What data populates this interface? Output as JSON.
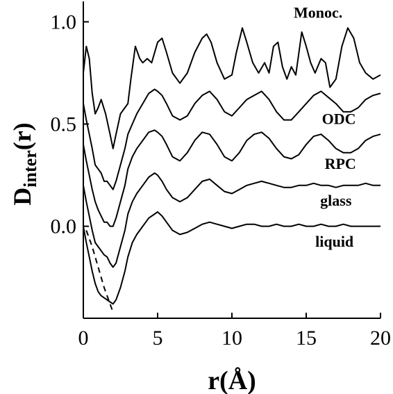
{
  "chart_data": {
    "type": "line",
    "title": "",
    "xlabel": "r(Å)",
    "ylabel_main": "D",
    "ylabel_sub": "inter",
    "ylabel_tail": "(r)",
    "xlim": [
      0,
      20
    ],
    "ylim": [
      -0.45,
      1.1
    ],
    "x_ticks": [
      0,
      5,
      10,
      15,
      20
    ],
    "x_tick_labels": [
      "0",
      "5",
      "10",
      "15",
      "20"
    ],
    "y_ticks": [
      0.0,
      0.5,
      1.0
    ],
    "y_tick_labels": [
      "0.0",
      "0.5",
      "1.0"
    ],
    "grid": false,
    "line_color": "#000000",
    "series": [
      {
        "name": "Monoc.",
        "x": [
          0,
          0.2,
          0.4,
          0.6,
          0.8,
          1.0,
          1.2,
          1.5,
          1.8,
          2.0,
          2.2,
          2.5,
          2.8,
          3.0,
          3.2,
          3.5,
          3.8,
          4.0,
          4.3,
          4.6,
          5.0,
          5.3,
          5.6,
          6.0,
          6.5,
          7.0,
          7.5,
          8.0,
          8.3,
          8.6,
          9.0,
          9.5,
          10.0,
          10.3,
          10.7,
          11.0,
          11.4,
          11.8,
          12.2,
          12.5,
          12.8,
          13.1,
          13.4,
          13.7,
          14.0,
          14.3,
          14.7,
          15.0,
          15.3,
          15.6,
          16.0,
          16.3,
          16.6,
          17.0,
          17.4,
          17.8,
          18.2,
          18.6,
          19.0,
          19.5,
          20.0
        ],
        "y": [
          0.75,
          0.88,
          0.82,
          0.65,
          0.55,
          0.58,
          0.62,
          0.55,
          0.45,
          0.38,
          0.45,
          0.55,
          0.58,
          0.6,
          0.72,
          0.88,
          0.82,
          0.8,
          0.82,
          0.8,
          0.9,
          0.92,
          0.85,
          0.75,
          0.7,
          0.75,
          0.85,
          0.92,
          0.94,
          0.9,
          0.8,
          0.72,
          0.74,
          0.85,
          0.97,
          0.9,
          0.8,
          0.75,
          0.8,
          0.75,
          0.88,
          0.9,
          0.78,
          0.72,
          0.78,
          0.74,
          0.95,
          0.88,
          0.8,
          0.75,
          0.82,
          0.8,
          0.68,
          0.72,
          0.88,
          0.97,
          0.92,
          0.8,
          0.75,
          0.72,
          0.74
        ]
      },
      {
        "name": "ODC",
        "x": [
          0,
          0.2,
          0.4,
          0.6,
          0.8,
          1.0,
          1.2,
          1.4,
          1.6,
          1.8,
          2.0,
          2.2,
          2.5,
          2.8,
          3.0,
          3.3,
          3.6,
          4.0,
          4.4,
          4.8,
          5.0,
          5.3,
          5.6,
          6.0,
          6.5,
          7.0,
          7.5,
          8.0,
          8.5,
          9.0,
          9.5,
          10.0,
          10.5,
          11.0,
          11.5,
          12.0,
          12.5,
          13.0,
          13.5,
          14.0,
          14.5,
          15.0,
          15.5,
          16.0,
          16.5,
          17.0,
          17.5,
          18.0,
          18.5,
          19.0,
          19.5,
          20.0
        ],
        "y": [
          0.6,
          0.52,
          0.45,
          0.38,
          0.3,
          0.28,
          0.26,
          0.22,
          0.22,
          0.2,
          0.18,
          0.22,
          0.3,
          0.38,
          0.45,
          0.5,
          0.55,
          0.6,
          0.65,
          0.67,
          0.66,
          0.64,
          0.6,
          0.54,
          0.52,
          0.54,
          0.6,
          0.64,
          0.66,
          0.62,
          0.56,
          0.54,
          0.58,
          0.62,
          0.64,
          0.66,
          0.62,
          0.56,
          0.52,
          0.52,
          0.56,
          0.6,
          0.64,
          0.66,
          0.63,
          0.6,
          0.56,
          0.56,
          0.58,
          0.62,
          0.64,
          0.65
        ]
      },
      {
        "name": "RPC",
        "x": [
          0,
          0.2,
          0.4,
          0.6,
          0.8,
          1.0,
          1.2,
          1.4,
          1.6,
          1.8,
          2.0,
          2.2,
          2.5,
          2.8,
          3.0,
          3.3,
          3.6,
          4.0,
          4.4,
          4.8,
          5.0,
          5.3,
          5.6,
          6.0,
          6.5,
          7.0,
          7.5,
          8.0,
          8.5,
          9.0,
          9.5,
          10.0,
          10.5,
          11.0,
          11.5,
          12.0,
          12.5,
          13.0,
          13.5,
          14.0,
          14.5,
          15.0,
          15.5,
          16.0,
          16.5,
          17.0,
          17.5,
          18.0,
          18.5,
          19.0,
          19.5,
          20.0
        ],
        "y": [
          0.4,
          0.32,
          0.25,
          0.18,
          0.12,
          0.08,
          0.05,
          0.02,
          0.02,
          0.0,
          0.0,
          0.04,
          0.12,
          0.2,
          0.28,
          0.34,
          0.38,
          0.42,
          0.46,
          0.47,
          0.46,
          0.44,
          0.4,
          0.34,
          0.32,
          0.36,
          0.42,
          0.46,
          0.45,
          0.4,
          0.34,
          0.32,
          0.36,
          0.42,
          0.45,
          0.46,
          0.43,
          0.38,
          0.34,
          0.33,
          0.35,
          0.4,
          0.44,
          0.45,
          0.42,
          0.38,
          0.36,
          0.36,
          0.38,
          0.42,
          0.44,
          0.45
        ]
      },
      {
        "name": "glass",
        "x": [
          0,
          0.2,
          0.4,
          0.6,
          0.8,
          1.0,
          1.2,
          1.4,
          1.6,
          1.8,
          2.0,
          2.2,
          2.5,
          2.8,
          3.0,
          3.3,
          3.6,
          4.0,
          4.4,
          4.8,
          5.0,
          5.3,
          5.6,
          6.0,
          6.5,
          7.0,
          7.5,
          8.0,
          8.5,
          9.0,
          9.5,
          10.0,
          10.5,
          11.0,
          11.5,
          12.0,
          12.5,
          13.0,
          13.5,
          14.0,
          14.5,
          15.0,
          15.5,
          16.0,
          16.5,
          17.0,
          17.5,
          18.0,
          18.5,
          19.0,
          19.5,
          20.0
        ],
        "y": [
          0.2,
          0.12,
          0.05,
          -0.02,
          -0.08,
          -0.1,
          -0.12,
          -0.14,
          -0.15,
          -0.18,
          -0.2,
          -0.18,
          -0.1,
          -0.02,
          0.06,
          0.12,
          0.16,
          0.2,
          0.24,
          0.26,
          0.25,
          0.22,
          0.18,
          0.14,
          0.12,
          0.14,
          0.18,
          0.22,
          0.23,
          0.2,
          0.17,
          0.16,
          0.18,
          0.2,
          0.21,
          0.22,
          0.21,
          0.2,
          0.19,
          0.19,
          0.2,
          0.2,
          0.21,
          0.2,
          0.2,
          0.19,
          0.2,
          0.2,
          0.2,
          0.21,
          0.2,
          0.2
        ]
      },
      {
        "name": "liquid",
        "x": [
          0,
          0.2,
          0.4,
          0.6,
          0.8,
          1.0,
          1.2,
          1.4,
          1.6,
          1.8,
          2.0,
          2.2,
          2.5,
          2.8,
          3.0,
          3.3,
          3.6,
          4.0,
          4.4,
          4.8,
          5.0,
          5.3,
          5.6,
          6.0,
          6.5,
          7.0,
          7.5,
          8.0,
          8.5,
          9.0,
          9.5,
          10.0,
          10.5,
          11.0,
          11.5,
          12.0,
          12.5,
          13.0,
          13.5,
          14.0,
          14.5,
          15.0,
          15.5,
          16.0,
          16.5,
          17.0,
          17.5,
          18.0,
          18.5,
          19.0,
          19.5,
          20.0
        ],
        "y": [
          0.0,
          -0.08,
          -0.15,
          -0.22,
          -0.28,
          -0.32,
          -0.34,
          -0.35,
          -0.36,
          -0.37,
          -0.38,
          -0.36,
          -0.3,
          -0.22,
          -0.15,
          -0.08,
          -0.04,
          0.0,
          0.04,
          0.06,
          0.07,
          0.05,
          0.02,
          -0.02,
          -0.04,
          -0.03,
          -0.01,
          0.01,
          0.02,
          0.01,
          0.0,
          -0.01,
          0.0,
          0.01,
          0.01,
          0.0,
          0.0,
          0.01,
          0.0,
          0.0,
          0.01,
          0.0,
          0.0,
          0.01,
          0.0,
          0.0,
          0.01,
          0.0,
          0.0,
          0.0,
          0.0,
          0.0
        ]
      },
      {
        "name": "",
        "style": "dashed",
        "x": [
          0.2,
          0.6,
          1.0,
          1.4,
          1.8,
          2.0
        ],
        "y": [
          -0.02,
          -0.1,
          -0.2,
          -0.3,
          -0.38,
          -0.42
        ]
      }
    ],
    "series_labels": [
      {
        "text": "Monoc.",
        "x": 15.8,
        "y": 1.02
      },
      {
        "text": "ODC",
        "x": 17.2,
        "y": 0.5
      },
      {
        "text": "RPC",
        "x": 17.3,
        "y": 0.28
      },
      {
        "text": "glass",
        "x": 17.0,
        "y": 0.1
      },
      {
        "text": "liquid",
        "x": 16.9,
        "y": -0.1
      }
    ]
  }
}
